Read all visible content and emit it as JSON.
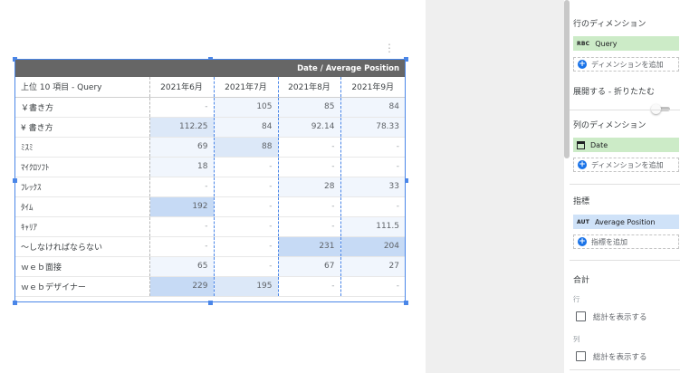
{
  "table": {
    "header_group": "Date / Average Position",
    "row_dimension_header": "上位 10 項目 - Query",
    "columns": [
      "2021年6月",
      "2021年7月",
      "2021年8月",
      "2021年9月"
    ],
    "rows": [
      {
        "query": "￥書き方",
        "values": [
          "-",
          "105",
          "85",
          "84"
        ]
      },
      {
        "query": "¥ 書き方",
        "values": [
          "112.25",
          "84",
          "92.14",
          "78.33"
        ]
      },
      {
        "query": "ﾐｽﾐ",
        "values": [
          "69",
          "88",
          "-",
          "-"
        ]
      },
      {
        "query": "ﾏｲｸﾛｿﾌﾄ",
        "values": [
          "18",
          "-",
          "-",
          "-"
        ]
      },
      {
        "query": "ﾌﾚｯｸｽ",
        "values": [
          "-",
          "-",
          "28",
          "33"
        ]
      },
      {
        "query": "ﾀｲﾑ",
        "values": [
          "192",
          "-",
          "-",
          "-"
        ]
      },
      {
        "query": "ｷｬﾘｱ",
        "values": [
          "-",
          "-",
          "-",
          "111.5"
        ]
      },
      {
        "query": "～しなければならない",
        "values": [
          "-",
          "-",
          "231",
          "204"
        ]
      },
      {
        "query": "ｗｅｂ面接",
        "values": [
          "65",
          "-",
          "67",
          "27"
        ]
      },
      {
        "query": "ｗｅｂデザイナー",
        "values": [
          "229",
          "195",
          "-",
          "-"
        ]
      }
    ],
    "heat_levels": [
      [
        0,
        1,
        1,
        1
      ],
      [
        2,
        1,
        1,
        1
      ],
      [
        1,
        2,
        0,
        0
      ],
      [
        1,
        0,
        0,
        0
      ],
      [
        0,
        0,
        1,
        1
      ],
      [
        3,
        0,
        0,
        0
      ],
      [
        0,
        0,
        0,
        1
      ],
      [
        0,
        0,
        3,
        3
      ],
      [
        1,
        0,
        1,
        1
      ],
      [
        3,
        2,
        0,
        0
      ]
    ],
    "heat_colors": {
      "0": "#ffffff",
      "1": "#f1f6fd",
      "2": "#dce8f8",
      "3": "#c6daf5"
    }
  },
  "panel": {
    "row_dimension": {
      "title": "行のディメンション",
      "chip_badge": "RBC",
      "chip_label": "Query",
      "add_label": "ディメンションを追加"
    },
    "expand_collapse_label": "展開する - 折りたたむ",
    "column_dimension": {
      "title": "列のディメンション",
      "chip_label": "Date",
      "add_label": "ディメンションを追加"
    },
    "metrics": {
      "title": "指標",
      "chip_badge": "AUT",
      "chip_label": "Average Position",
      "add_label": "指標を追加"
    },
    "totals": {
      "title": "合計",
      "row_label": "行",
      "row_checkbox_label": "総計を表示する",
      "column_label": "列",
      "column_checkbox_label": "総計を表示する"
    },
    "colors": {
      "dimension_chip": "#ccebc7",
      "metric_chip": "#cfe2f8",
      "add_icon": "#1a73e8",
      "selection": "#4a86e8"
    }
  }
}
